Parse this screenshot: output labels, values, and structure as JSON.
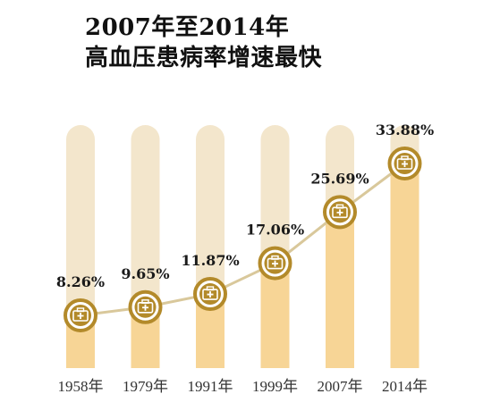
{
  "header": {
    "title_line1": "2007年至2014年",
    "title_line2": "高血压患病率增速最快"
  },
  "colors": {
    "track": "#f3e6cc",
    "fill": "#f7d596",
    "line": "#d9c89b",
    "marker": "#b38a2a",
    "marker_inner": "#ffffff"
  },
  "chart_data": {
    "type": "line",
    "categories": [
      "1958年",
      "1979年",
      "1991年",
      "1999年",
      "2007年",
      "2014年"
    ],
    "series": [
      {
        "values": [
          8.26,
          9.65,
          11.87,
          17.06,
          25.69,
          33.88
        ],
        "labels": [
          "8.26%",
          "9.65%",
          "11.87%",
          "17.06%",
          "25.69%",
          "33.88%"
        ]
      }
    ],
    "title": "2007年至2014年 高血压患病率增速最快",
    "xlabel": "",
    "ylabel": "",
    "ylim": [
      0,
      40
    ],
    "grid": false,
    "icon": "medical-kit-icon"
  }
}
